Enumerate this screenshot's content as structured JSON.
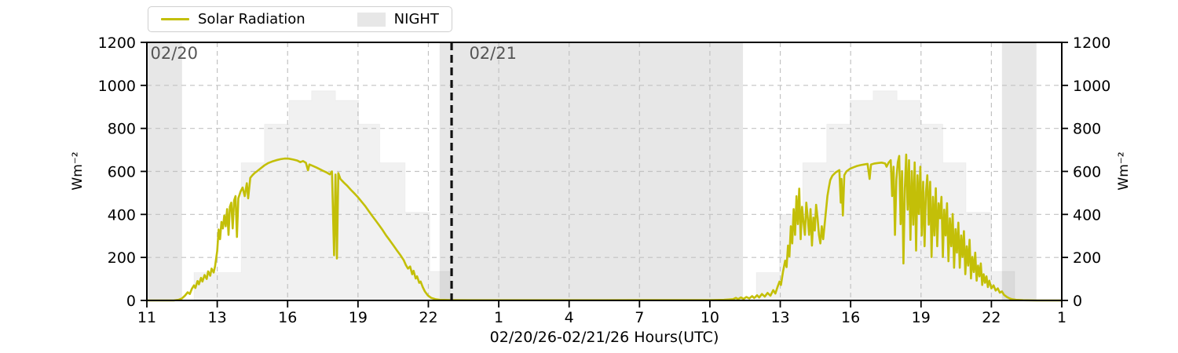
{
  "legend": {
    "items": [
      {
        "label": "Solar Radiation",
        "type": "line",
        "color": "#c3bf08"
      },
      {
        "label": "NIGHT",
        "type": "patch",
        "color": "#e7e7e7"
      }
    ]
  },
  "axes": {
    "xlabel": "02/20/26-02/21/26  Hours(UTC)",
    "ylabel_left": "Wm⁻²",
    "ylabel_right": "Wm⁻²",
    "x_tick_labels": [
      "11",
      "13",
      "16",
      "19",
      "22",
      "1",
      "4",
      "7",
      "10",
      "13",
      "16",
      "19",
      "22",
      "1"
    ],
    "y_ticks": [
      0,
      200,
      400,
      600,
      800,
      1000,
      1200
    ],
    "ylim": [
      0,
      1200
    ]
  },
  "annotations": {
    "day1": "02/20",
    "day2": "02/21",
    "day1_x": 0.05,
    "day2_x": 4.58,
    "day_boundary_line_x": 4.33
  },
  "colors": {
    "solar_line": "#c3bf08",
    "night_fill": "#e7e7e7",
    "clear_sky_fill": "rgba(0,0,0,0.055)",
    "grid": "#c2c2c2",
    "spine": "#000000",
    "annotation_text": "#555555",
    "day_boundary_line": "#111111"
  },
  "chart_data": {
    "type": "line",
    "title": "",
    "x_units": "evenly spaced ticks labeled in hours UTC from 02/20 11:00 to 02/22 01:00",
    "y_units": "Wm⁻²",
    "ylim": [
      0,
      1200
    ],
    "grid": true,
    "legend_position": "top-left",
    "night_bands": [
      [
        0,
        0.5
      ],
      [
        4.16,
        8.47
      ],
      [
        12.15,
        12.64
      ]
    ],
    "day_boundary_line_x": 4.33,
    "clear_sky_steps_day1": [
      [
        0.67,
        1.34,
        130
      ],
      [
        1.34,
        1.67,
        640
      ],
      [
        1.67,
        2.02,
        820
      ],
      [
        2.02,
        2.34,
        930
      ],
      [
        2.34,
        2.68,
        975
      ],
      [
        2.68,
        3.01,
        930
      ],
      [
        3.01,
        3.31,
        820
      ],
      [
        3.31,
        3.67,
        640
      ],
      [
        3.67,
        4.02,
        410
      ],
      [
        4.02,
        4.31,
        135
      ]
    ],
    "clear_sky_steps_day2": [
      [
        8.66,
        8.99,
        130
      ],
      [
        8.99,
        9.32,
        400
      ],
      [
        9.32,
        9.66,
        640
      ],
      [
        9.66,
        9.99,
        820
      ],
      [
        9.99,
        10.32,
        930
      ],
      [
        10.32,
        10.66,
        975
      ],
      [
        10.66,
        10.99,
        930
      ],
      [
        10.99,
        11.31,
        820
      ],
      [
        11.31,
        11.64,
        640
      ],
      [
        11.64,
        12.0,
        410
      ],
      [
        12.0,
        12.33,
        135
      ]
    ],
    "solar_series": [
      [
        0,
        0
      ],
      [
        0.38,
        0
      ],
      [
        0.45,
        3
      ],
      [
        0.5,
        10
      ],
      [
        0.54,
        22
      ],
      [
        0.58,
        38
      ],
      [
        0.61,
        30
      ],
      [
        0.64,
        55
      ],
      [
        0.67,
        70
      ],
      [
        0.69,
        58
      ],
      [
        0.72,
        90
      ],
      [
        0.74,
        75
      ],
      [
        0.77,
        105
      ],
      [
        0.79,
        88
      ],
      [
        0.82,
        118
      ],
      [
        0.85,
        100
      ],
      [
        0.87,
        135
      ],
      [
        0.9,
        115
      ],
      [
        0.92,
        148
      ],
      [
        0.95,
        130
      ],
      [
        0.97,
        160
      ],
      [
        1.0,
        230
      ],
      [
        1.02,
        330
      ],
      [
        1.04,
        285
      ],
      [
        1.06,
        365
      ],
      [
        1.08,
        335
      ],
      [
        1.1,
        395
      ],
      [
        1.12,
        345
      ],
      [
        1.14,
        425
      ],
      [
        1.16,
        305
      ],
      [
        1.18,
        435
      ],
      [
        1.2,
        455
      ],
      [
        1.22,
        335
      ],
      [
        1.24,
        465
      ],
      [
        1.26,
        485
      ],
      [
        1.28,
        295
      ],
      [
        1.3,
        475
      ],
      [
        1.33,
        505
      ],
      [
        1.36,
        525
      ],
      [
        1.39,
        485
      ],
      [
        1.42,
        545
      ],
      [
        1.44,
        475
      ],
      [
        1.47,
        570
      ],
      [
        1.5,
        582
      ],
      [
        1.53,
        592
      ],
      [
        1.57,
        602
      ],
      [
        1.62,
        615
      ],
      [
        1.67,
        628
      ],
      [
        1.72,
        638
      ],
      [
        1.78,
        646
      ],
      [
        1.84,
        652
      ],
      [
        1.9,
        657
      ],
      [
        1.96,
        660
      ],
      [
        2.02,
        659
      ],
      [
        2.08,
        655
      ],
      [
        2.14,
        650
      ],
      [
        2.18,
        643
      ],
      [
        2.22,
        648
      ],
      [
        2.26,
        640
      ],
      [
        2.29,
        605
      ],
      [
        2.31,
        632
      ],
      [
        2.36,
        625
      ],
      [
        2.41,
        618
      ],
      [
        2.46,
        610
      ],
      [
        2.51,
        602
      ],
      [
        2.56,
        594
      ],
      [
        2.6,
        586
      ],
      [
        2.63,
        600
      ],
      [
        2.66,
        210
      ],
      [
        2.68,
        585
      ],
      [
        2.7,
        195
      ],
      [
        2.72,
        592
      ],
      [
        2.75,
        565
      ],
      [
        2.8,
        548
      ],
      [
        2.85,
        532
      ],
      [
        2.9,
        514
      ],
      [
        2.95,
        497
      ],
      [
        3.0,
        480
      ],
      [
        3.05,
        460
      ],
      [
        3.1,
        440
      ],
      [
        3.15,
        417
      ],
      [
        3.2,
        394
      ],
      [
        3.25,
        372
      ],
      [
        3.3,
        350
      ],
      [
        3.35,
        327
      ],
      [
        3.4,
        302
      ],
      [
        3.45,
        280
      ],
      [
        3.5,
        257
      ],
      [
        3.55,
        234
      ],
      [
        3.6,
        212
      ],
      [
        3.65,
        187
      ],
      [
        3.68,
        165
      ],
      [
        3.71,
        148
      ],
      [
        3.74,
        158
      ],
      [
        3.77,
        122
      ],
      [
        3.79,
        138
      ],
      [
        3.82,
        102
      ],
      [
        3.84,
        112
      ],
      [
        3.87,
        82
      ],
      [
        3.89,
        88
      ],
      [
        3.92,
        62
      ],
      [
        3.95,
        42
      ],
      [
        3.99,
        24
      ],
      [
        4.04,
        12
      ],
      [
        4.1,
        6
      ],
      [
        4.16,
        3
      ],
      [
        4.33,
        2
      ],
      [
        4.6,
        1
      ],
      [
        5.0,
        1
      ],
      [
        5.5,
        1
      ],
      [
        6.0,
        1
      ],
      [
        6.5,
        1
      ],
      [
        7.0,
        2
      ],
      [
        7.5,
        2
      ],
      [
        8.0,
        2
      ],
      [
        8.2,
        3
      ],
      [
        8.33,
        6
      ],
      [
        8.37,
        12
      ],
      [
        8.4,
        6
      ],
      [
        8.44,
        14
      ],
      [
        8.48,
        7
      ],
      [
        8.52,
        16
      ],
      [
        8.56,
        9
      ],
      [
        8.6,
        20
      ],
      [
        8.63,
        11
      ],
      [
        8.67,
        24
      ],
      [
        8.7,
        14
      ],
      [
        8.74,
        30
      ],
      [
        8.78,
        18
      ],
      [
        8.82,
        35
      ],
      [
        8.86,
        22
      ],
      [
        8.9,
        48
      ],
      [
        8.93,
        32
      ],
      [
        8.96,
        62
      ],
      [
        8.99,
        88
      ],
      [
        9.01,
        72
      ],
      [
        9.04,
        135
      ],
      [
        9.07,
        185
      ],
      [
        9.09,
        155
      ],
      [
        9.11,
        255
      ],
      [
        9.13,
        205
      ],
      [
        9.15,
        345
      ],
      [
        9.17,
        265
      ],
      [
        9.19,
        425
      ],
      [
        9.21,
        305
      ],
      [
        9.23,
        485
      ],
      [
        9.25,
        355
      ],
      [
        9.27,
        520
      ],
      [
        9.29,
        285
      ],
      [
        9.31,
        435
      ],
      [
        9.33,
        365
      ],
      [
        9.35,
        305
      ],
      [
        9.37,
        455
      ],
      [
        9.39,
        385
      ],
      [
        9.41,
        305
      ],
      [
        9.43,
        425
      ],
      [
        9.45,
        255
      ],
      [
        9.47,
        385
      ],
      [
        9.49,
        325
      ],
      [
        9.51,
        445
      ],
      [
        9.53,
        385
      ],
      [
        9.55,
        305
      ],
      [
        9.57,
        265
      ],
      [
        9.59,
        345
      ],
      [
        9.61,
        285
      ],
      [
        9.64,
        385
      ],
      [
        9.67,
        485
      ],
      [
        9.69,
        525
      ],
      [
        9.71,
        560
      ],
      [
        9.74,
        580
      ],
      [
        9.79,
        596
      ],
      [
        9.84,
        606
      ],
      [
        9.86,
        455
      ],
      [
        9.87,
        565
      ],
      [
        9.89,
        395
      ],
      [
        9.91,
        582
      ],
      [
        9.94,
        600
      ],
      [
        9.99,
        612
      ],
      [
        10.04,
        619
      ],
      [
        10.09,
        625
      ],
      [
        10.14,
        629
      ],
      [
        10.19,
        632
      ],
      [
        10.24,
        635
      ],
      [
        10.27,
        565
      ],
      [
        10.29,
        632
      ],
      [
        10.34,
        637
      ],
      [
        10.39,
        639
      ],
      [
        10.44,
        641
      ],
      [
        10.49,
        637
      ],
      [
        10.51,
        622
      ],
      [
        10.54,
        641
      ],
      [
        10.57,
        652
      ],
      [
        10.59,
        485
      ],
      [
        10.61,
        622
      ],
      [
        10.63,
        305
      ],
      [
        10.65,
        562
      ],
      [
        10.67,
        642
      ],
      [
        10.69,
        672
      ],
      [
        10.71,
        355
      ],
      [
        10.73,
        602
      ],
      [
        10.75,
        172
      ],
      [
        10.77,
        522
      ],
      [
        10.79,
        678
      ],
      [
        10.81,
        422
      ],
      [
        10.83,
        652
      ],
      [
        10.85,
        282
      ],
      [
        10.87,
        602
      ],
      [
        10.89,
        352
      ],
      [
        10.91,
        642
      ],
      [
        10.93,
        232
      ],
      [
        10.95,
        582
      ],
      [
        10.97,
        402
      ],
      [
        10.99,
        622
      ],
      [
        11.01,
        302
      ],
      [
        11.03,
        552
      ],
      [
        11.05,
        252
      ],
      [
        11.07,
        502
      ],
      [
        11.09,
        582
      ],
      [
        11.11,
        352
      ],
      [
        11.13,
        552
      ],
      [
        11.15,
        202
      ],
      [
        11.17,
        482
      ],
      [
        11.19,
        302
      ],
      [
        11.21,
        522
      ],
      [
        11.23,
        252
      ],
      [
        11.25,
        452
      ],
      [
        11.27,
        382
      ],
      [
        11.29,
        482
      ],
      [
        11.31,
        202
      ],
      [
        11.33,
        422
      ],
      [
        11.35,
        302
      ],
      [
        11.37,
        452
      ],
      [
        11.39,
        182
      ],
      [
        11.41,
        382
      ],
      [
        11.43,
        252
      ],
      [
        11.45,
        402
      ],
      [
        11.47,
        152
      ],
      [
        11.49,
        332
      ],
      [
        11.51,
        222
      ],
      [
        11.53,
        362
      ],
      [
        11.55,
        152
      ],
      [
        11.57,
        302
      ],
      [
        11.59,
        202
      ],
      [
        11.61,
        322
      ],
      [
        11.63,
        122
      ],
      [
        11.65,
        252
      ],
      [
        11.67,
        162
      ],
      [
        11.69,
        282
      ],
      [
        11.71,
        102
      ],
      [
        11.73,
        202
      ],
      [
        11.75,
        132
      ],
      [
        11.77,
        222
      ],
      [
        11.79,
        92
      ],
      [
        11.81,
        162
      ],
      [
        11.83,
        112
      ],
      [
        11.85,
        172
      ],
      [
        11.87,
        72
      ],
      [
        11.89,
        122
      ],
      [
        11.91,
        82
      ],
      [
        11.93,
        112
      ],
      [
        11.95,
        62
      ],
      [
        11.97,
        92
      ],
      [
        12.0,
        56
      ],
      [
        12.03,
        70
      ],
      [
        12.06,
        46
      ],
      [
        12.09,
        56
      ],
      [
        12.12,
        36
      ],
      [
        12.15,
        42
      ],
      [
        12.18,
        26
      ],
      [
        12.22,
        16
      ],
      [
        12.26,
        9
      ],
      [
        12.3,
        5
      ],
      [
        12.35,
        3
      ],
      [
        12.45,
        1
      ],
      [
        12.64,
        0
      ],
      [
        13,
        0
      ]
    ]
  }
}
